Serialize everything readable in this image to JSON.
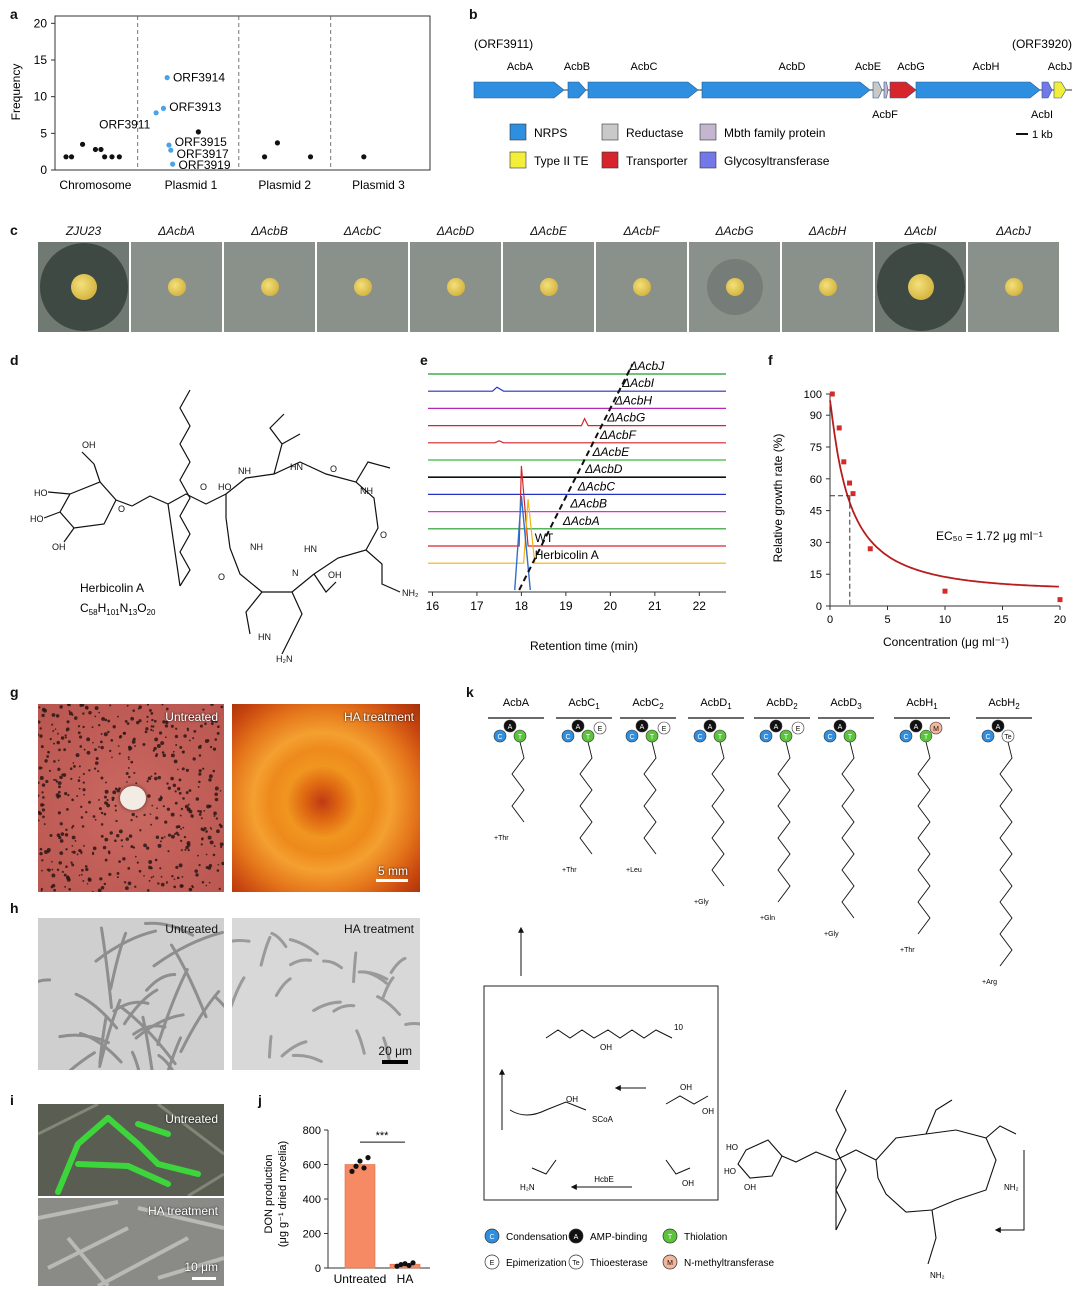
{
  "panels": {
    "a": "a",
    "b": "b",
    "c": "c",
    "d": "d",
    "e": "e",
    "f": "f",
    "g": "g",
    "h": "h",
    "i": "i",
    "j": "j",
    "k": "k"
  },
  "chart_a": {
    "type": "scatter",
    "ylabel": "Frequency",
    "yticks": [
      "0",
      "5",
      "10",
      "15",
      "20"
    ],
    "ylim": [
      0,
      21
    ],
    "groups": [
      "Chromosome",
      "Plasmid 1",
      "Plasmid 2",
      "Plasmid 3"
    ],
    "black_points": [
      [
        0.3,
        1.8
      ],
      [
        0.45,
        1.8
      ],
      [
        0.75,
        3.5
      ],
      [
        1.1,
        2.8
      ],
      [
        1.25,
        2.8
      ],
      [
        1.35,
        1.8
      ],
      [
        1.55,
        1.8
      ],
      [
        1.75,
        1.8
      ],
      [
        3.9,
        5.2
      ],
      [
        5.7,
        1.8
      ],
      [
        6.05,
        3.7
      ],
      [
        6.95,
        1.8
      ],
      [
        8.4,
        1.8
      ]
    ],
    "blue_points": [
      [
        2.75,
        7.8
      ],
      [
        2.95,
        8.4
      ],
      [
        3.05,
        12.6
      ],
      [
        3.1,
        3.4
      ],
      [
        3.15,
        2.7
      ],
      [
        3.2,
        0.8
      ]
    ],
    "annotations": [
      "ORF3914",
      "ORF3913",
      "ORF3911",
      "ORF3915",
      "ORF3917",
      "ORF3919"
    ]
  },
  "panel_b": {
    "left_orf": "(ORF3911)",
    "right_orf": "(ORF3920)",
    "genes": [
      {
        "name": "AcbA",
        "type": "NRPS"
      },
      {
        "name": "AcbB",
        "type": "NRPS"
      },
      {
        "name": "AcbC",
        "type": "NRPS"
      },
      {
        "name": "AcbD",
        "type": "NRPS"
      },
      {
        "name": "AcbE",
        "type": "Reductase"
      },
      {
        "name": "AcbF",
        "type": "Mbth"
      },
      {
        "name": "AcbG",
        "type": "Transporter"
      },
      {
        "name": "AcbH",
        "type": "NRPS"
      },
      {
        "name": "AcbI",
        "type": "Glyco"
      },
      {
        "name": "AcbJ",
        "type": "TE"
      }
    ],
    "legend": [
      {
        "label": "NRPS",
        "color": "#2e8fe0"
      },
      {
        "label": "Reductase",
        "color": "#c9c9c9"
      },
      {
        "label": "Mbth family protein",
        "color": "#c4b6cf"
      },
      {
        "label": "Type II TE",
        "color": "#f2ee3a"
      },
      {
        "label": "Transporter",
        "color": "#d6262b"
      },
      {
        "label": "Glycosyltransferase",
        "color": "#7378e8"
      }
    ],
    "scale": "1 kb"
  },
  "panel_c": {
    "strains": [
      "ZJU23",
      "ΔAcbA",
      "ΔAcbB",
      "ΔAcbC",
      "ΔAcbD",
      "ΔAcbE",
      "ΔAcbF",
      "ΔAcbG",
      "ΔAcbH",
      "ΔAcbI",
      "ΔAcbJ"
    ]
  },
  "panel_d": {
    "name": "Herbicolin A",
    "formula": "C58H101N13O20"
  },
  "chart_e": {
    "type": "line",
    "xlabel": "Retention time (min)",
    "xticks": [
      "16",
      "17",
      "18",
      "19",
      "20",
      "21",
      "22"
    ],
    "traces": [
      {
        "name": "ΔAcbJ",
        "color": "#1e9a2a"
      },
      {
        "name": "ΔAcbI",
        "color": "#2433c4"
      },
      {
        "name": "ΔAcbH",
        "color": "#b42ab4"
      },
      {
        "name": "ΔAcbG",
        "color": "#d4272c"
      },
      {
        "name": "ΔAcbF",
        "color": "#d4272c"
      },
      {
        "name": "ΔAcbE",
        "color": "#3ab83a"
      },
      {
        "name": "ΔAcbD",
        "color": "#111111"
      },
      {
        "name": "ΔAcbC",
        "color": "#2433c4"
      },
      {
        "name": "ΔAcbB",
        "color": "#d930d9"
      },
      {
        "name": "ΔAcbA",
        "color": "#1e9a2a"
      },
      {
        "name": "WT",
        "color": "#d4272c"
      },
      {
        "name": "Herbicolin A",
        "color": "#f2b410"
      }
    ]
  },
  "chart_f": {
    "type": "line",
    "ylabel": "Relative growth rate (%)",
    "xlabel": "Concentration (μg ml⁻¹)",
    "yticks": [
      "0",
      "15",
      "30",
      "45",
      "60",
      "75",
      "90",
      "100"
    ],
    "xticks": [
      "0",
      "5",
      "10",
      "15",
      "20"
    ],
    "x": [
      0.2,
      0.8,
      1.2,
      1.7,
      2.0,
      3.5,
      10,
      20
    ],
    "y": [
      100,
      84,
      68,
      58,
      53,
      27,
      7,
      3
    ],
    "ec50": "EC₅₀ = 1.72 μg ml⁻¹"
  },
  "panel_g": {
    "left": "Untreated",
    "right": "HA treatment",
    "scale": "5 mm"
  },
  "panel_h": {
    "left": "Untreated",
    "right": "HA treatment",
    "scale": "20 μm"
  },
  "panel_i": {
    "top": "Untreated",
    "bottom": "HA treatment",
    "scale": "10 μm"
  },
  "chart_j": {
    "type": "bar",
    "ylabel1": "DON production",
    "ylabel2": "(μg g⁻¹ dried mycelia)",
    "yticks": [
      "0",
      "200",
      "400",
      "600",
      "800"
    ],
    "ylim": [
      0,
      800
    ],
    "categories": [
      "Untreated",
      "HA"
    ],
    "values": [
      600,
      22
    ],
    "points": [
      [
        560,
        590,
        620,
        580,
        640
      ],
      [
        10,
        20,
        25,
        15,
        30
      ]
    ],
    "sig": "***"
  },
  "panel_k": {
    "modules": [
      "AcbA",
      "AcbC1",
      "AcbC2",
      "AcbD1",
      "AcbD2",
      "AcbD3",
      "AcbH1",
      "AcbH2"
    ],
    "adds": [
      "+Thr",
      "+Thr",
      "+Leu",
      "+Gly",
      "+Gln",
      "+Gly",
      "+Thr",
      "+Arg"
    ],
    "enzyme": "HcbE",
    "legend": [
      {
        "code": "C",
        "label": "Condensation",
        "color": "#2e8fe0"
      },
      {
        "code": "A",
        "label": "AMP-binding",
        "color": "#111111"
      },
      {
        "code": "T",
        "label": "Thiolation",
        "color": "#5ac43a"
      },
      {
        "code": "E",
        "label": "Epimerization",
        "color": "#ffffff"
      },
      {
        "code": "Te",
        "label": "Thioesterase",
        "color": "#ffffff"
      },
      {
        "code": "M",
        "label": "N-methyltransferase",
        "color": "#f4b69a"
      }
    ]
  }
}
